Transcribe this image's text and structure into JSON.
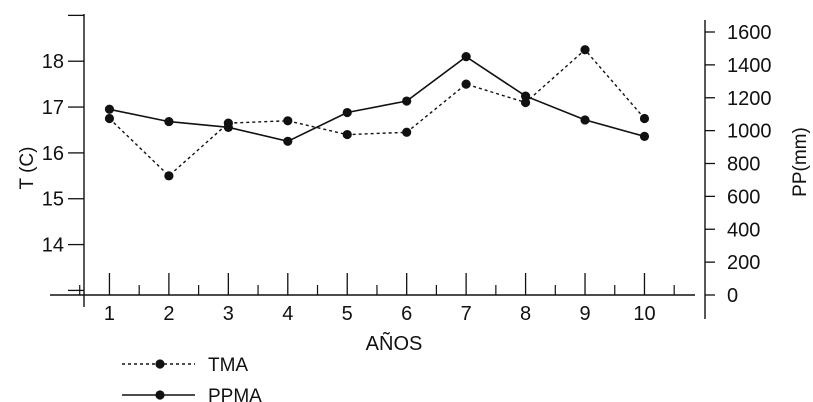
{
  "chart_data": {
    "type": "line",
    "xlabel": "AÑOS",
    "ylabel_left": "T (C)",
    "ylabel_right": "PP(mm)",
    "categories": [
      "1",
      "2",
      "3",
      "4",
      "5",
      "6",
      "7",
      "8",
      "9",
      "10"
    ],
    "x_range": [
      0,
      10.85
    ],
    "y_left": {
      "ticks": [
        14,
        15,
        16,
        17,
        18
      ],
      "range": [
        12.9,
        19.03
      ]
    },
    "y_right": {
      "ticks": [
        0,
        200,
        400,
        600,
        800,
        1000,
        1200,
        1400,
        1600
      ],
      "range": [
        0,
        1600
      ]
    },
    "grid": false,
    "legend_position": "bottom-left",
    "series": [
      {
        "name": "TMA",
        "axis": "left",
        "style": "dotted",
        "values": [
          16.75,
          15.5,
          16.65,
          16.7,
          16.4,
          16.45,
          17.5,
          17.1,
          18.25,
          16.75
        ]
      },
      {
        "name": "PPMA",
        "axis": "right",
        "style": "solid",
        "values": [
          1130,
          1055,
          1020,
          935,
          1110,
          1180,
          1450,
          1210,
          1065,
          965
        ]
      }
    ],
    "colors": {
      "line": "#111111"
    }
  }
}
